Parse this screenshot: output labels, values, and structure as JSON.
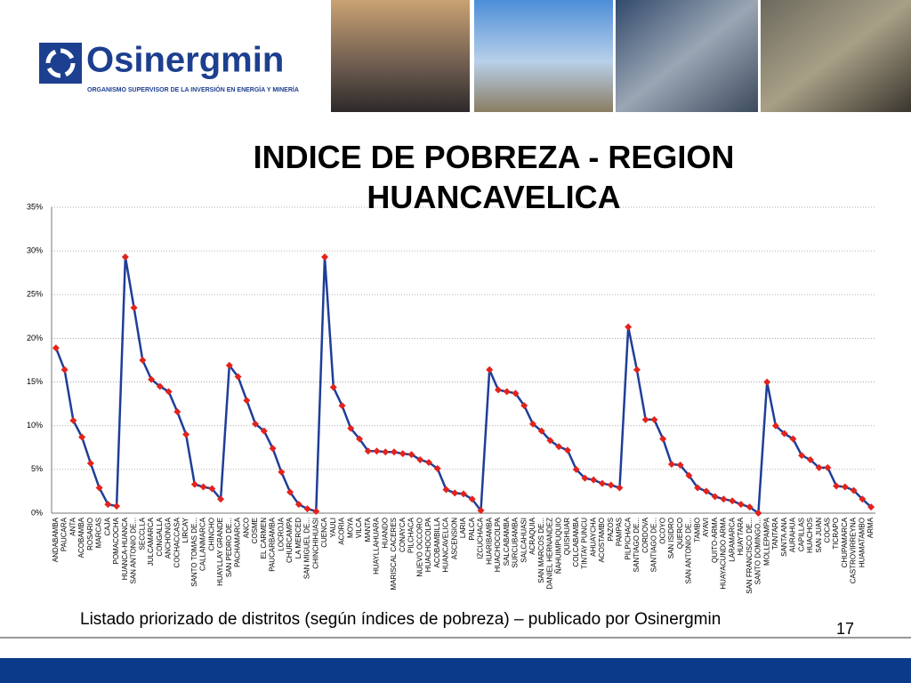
{
  "header": {
    "logo": "Osinergmin",
    "tagline": "ORGANISMO SUPERVISOR DE LA INVERSIÓN EN ENERGÍA Y MINERÍA"
  },
  "chart_data": {
    "type": "line",
    "title": "INDICE DE POBREZA - REGION HUANCAVELICA",
    "categories": [
      "ANDABAMBA",
      "PAUCARA",
      "ANTA",
      "ACOBAMBA",
      "ROSARIO",
      "MARCAS",
      "CAJA",
      "POMACOCHA",
      "HUANCA-HUANCA",
      "SAN ANTONIO DE...",
      "SECCLLA",
      "JULCAMARCA",
      "CONGALLA",
      "ANCHONGA",
      "COCHACCASA",
      "LIRCAY",
      "SANTO TOMAS DE...",
      "CALLANMARCA",
      "CHINCHO",
      "HUAYLLAY GRANDE",
      "SAN PEDRO DE...",
      "PACHAMARCA",
      "ANCO",
      "COSME",
      "EL CARMEN",
      "PAUCARBAMBA",
      "LOCROJA",
      "CHURCAMPA",
      "LA MERCED",
      "SAN MIGUEL DE...",
      "CHINCHIHUASI",
      "CUENCA",
      "YAULI",
      "ACORIA",
      "MOYA",
      "VILCA",
      "MANTA",
      "HUAYLLAHUARA",
      "HUANDO",
      "MARISCAL CACERES",
      "CONAYCA",
      "PILCHACA",
      "NUEVO OCCORO",
      "HUACHOCOLPA",
      "ACOBAMBILLA",
      "HUANCAVELICA",
      "ASCENSION",
      "LARIA",
      "PALCA",
      "IZCUCHACA",
      "HUARIBAMBA",
      "HUACHOCOLPA",
      "SALCABAMBA",
      "SURCUBAMBA",
      "SALCAHUASI",
      "ACRAQUIA",
      "SAN MARCOS DE...",
      "DANIEL HERNANDEZ",
      "ÑAHUIMPUQUIO",
      "QUISHUAR",
      "COLCABAMBA",
      "TINTAY PUNCU",
      "AHUAYCHA",
      "ACOSTAMBO",
      "PAZOS",
      "PAMPAS",
      "PILPICHACA",
      "SANTIAGO DE...",
      "CORDOVA",
      "SANTIAGO DE...",
      "OCOYO",
      "SAN ISIDRO",
      "QUERCO",
      "SAN ANTONIO DE...",
      "TAMBO",
      "AYAVI",
      "QUITO-ARMA",
      "HUAYACUNDO ARMA",
      "LARAMARCA",
      "HUAYTARA",
      "SAN FRANCISCO DE...",
      "SANTO DOMINGO...",
      "MOLLEPAMPA",
      "TANTARA",
      "SANTA ANA",
      "AURAHUA",
      "CAPILLAS",
      "HUACHOS",
      "SAN JUAN",
      "COCAS",
      "TICRAPO",
      "CHUPAMARCA",
      "CASTROVIRREYNA",
      "HUAMATAMBO",
      "ARMA"
    ],
    "values": [
      18.9,
      16.4,
      10.6,
      8.7,
      5.7,
      2.9,
      1.0,
      0.8,
      29.3,
      23.5,
      17.5,
      15.3,
      14.5,
      13.9,
      11.6,
      9.0,
      3.3,
      3.0,
      2.8,
      1.6,
      16.9,
      15.6,
      12.9,
      10.2,
      9.4,
      7.4,
      4.7,
      2.4,
      1.0,
      0.5,
      0.2,
      29.3,
      14.4,
      12.3,
      9.7,
      8.5,
      7.1,
      7.1,
      7.0,
      7.0,
      6.8,
      6.7,
      6.1,
      5.8,
      5.1,
      2.7,
      2.3,
      2.2,
      1.6,
      0.3,
      16.4,
      14.1,
      13.9,
      13.7,
      12.3,
      10.2,
      9.4,
      8.3,
      7.6,
      7.2,
      5.0,
      4.0,
      3.8,
      3.4,
      3.2,
      2.9,
      21.3,
      16.4,
      10.7,
      10.7,
      8.5,
      5.6,
      5.5,
      4.3,
      2.9,
      2.5,
      1.9,
      1.6,
      1.4,
      1.0,
      0.7,
      0.0,
      15.0,
      10.0,
      9.1,
      8.5,
      6.6,
      6.1,
      5.2,
      5.2,
      3.1,
      3.0,
      2.6,
      1.6,
      0.7
    ],
    "color": "#1f3e97",
    "marker_color": "#e3231b",
    "ylim": [
      0,
      35
    ],
    "yticks": [
      {
        "value": 0,
        "label": "0%"
      },
      {
        "value": 5,
        "label": "5%"
      },
      {
        "value": 10,
        "label": "10%"
      },
      {
        "value": 15,
        "label": "15%"
      },
      {
        "value": 20,
        "label": "20%"
      },
      {
        "value": 25,
        "label": "25%"
      },
      {
        "value": 30,
        "label": "30%"
      },
      {
        "value": 35,
        "label": "35%"
      }
    ],
    "grid": true
  },
  "footer": {
    "caption": "Listado priorizado de distritos (según índices de pobreza) – publicado por Osinergmin",
    "page": "17"
  }
}
